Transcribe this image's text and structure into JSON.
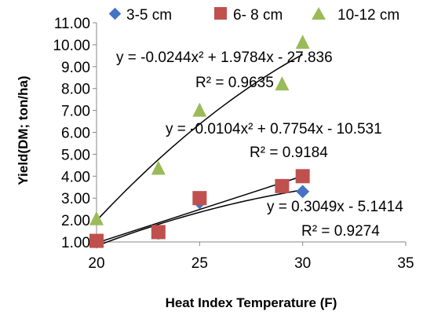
{
  "chart_data": {
    "type": "scatter",
    "title": "",
    "xlabel": "Heat Index Temperature (F)",
    "ylabel": "Yield(DM; ton/ha)",
    "xlim": [
      20,
      35
    ],
    "ylim": [
      1.0,
      11.0
    ],
    "x_ticks": [
      "20",
      "25",
      "30",
      "35"
    ],
    "y_ticks": [
      "1.00",
      "2.00",
      "3.00",
      "4.00",
      "5.00",
      "6.00",
      "7.00",
      "8.00",
      "9.00",
      "10.00",
      "11.00"
    ],
    "grid": false,
    "legend_position": "top",
    "series": [
      {
        "name": "3-5 cm",
        "marker": "diamond",
        "color": "#4472C4",
        "points": [
          [
            20,
            1.0
          ],
          [
            23,
            1.4
          ],
          [
            25,
            2.8
          ],
          [
            29,
            3.5
          ],
          [
            30,
            3.3
          ]
        ],
        "trendline": {
          "type": "linear",
          "a": 0.3049,
          "b": -5.1414
        },
        "equation": "y = 0.3049x - 5.1414",
        "r2": "R² = 0.9274"
      },
      {
        "name": "6- 8 cm",
        "marker": "square",
        "color": "#C0504D",
        "points": [
          [
            20,
            1.05
          ],
          [
            23,
            1.45
          ],
          [
            25,
            3.0
          ],
          [
            29,
            3.55
          ],
          [
            30,
            4.0
          ]
        ],
        "trendline": {
          "type": "poly2",
          "a": -0.0104,
          "b": 0.7754,
          "c": -10.531
        },
        "equation": "y = -0.0104x² + 0.7754x - 10.531",
        "r2": "R² = 0.9184"
      },
      {
        "name": "10-12 cm",
        "marker": "triangle",
        "color": "#9BBB59",
        "points": [
          [
            20,
            2.05
          ],
          [
            23,
            4.35
          ],
          [
            25,
            7.0
          ],
          [
            29,
            8.2
          ],
          [
            30,
            10.1
          ]
        ],
        "trendline": {
          "type": "poly2",
          "a": -0.0244,
          "b": 1.9784,
          "c": -27.836
        },
        "equation": "y = -0.0244x² + 1.9784x - 27.836",
        "r2": "R² = 0.9635"
      }
    ]
  }
}
